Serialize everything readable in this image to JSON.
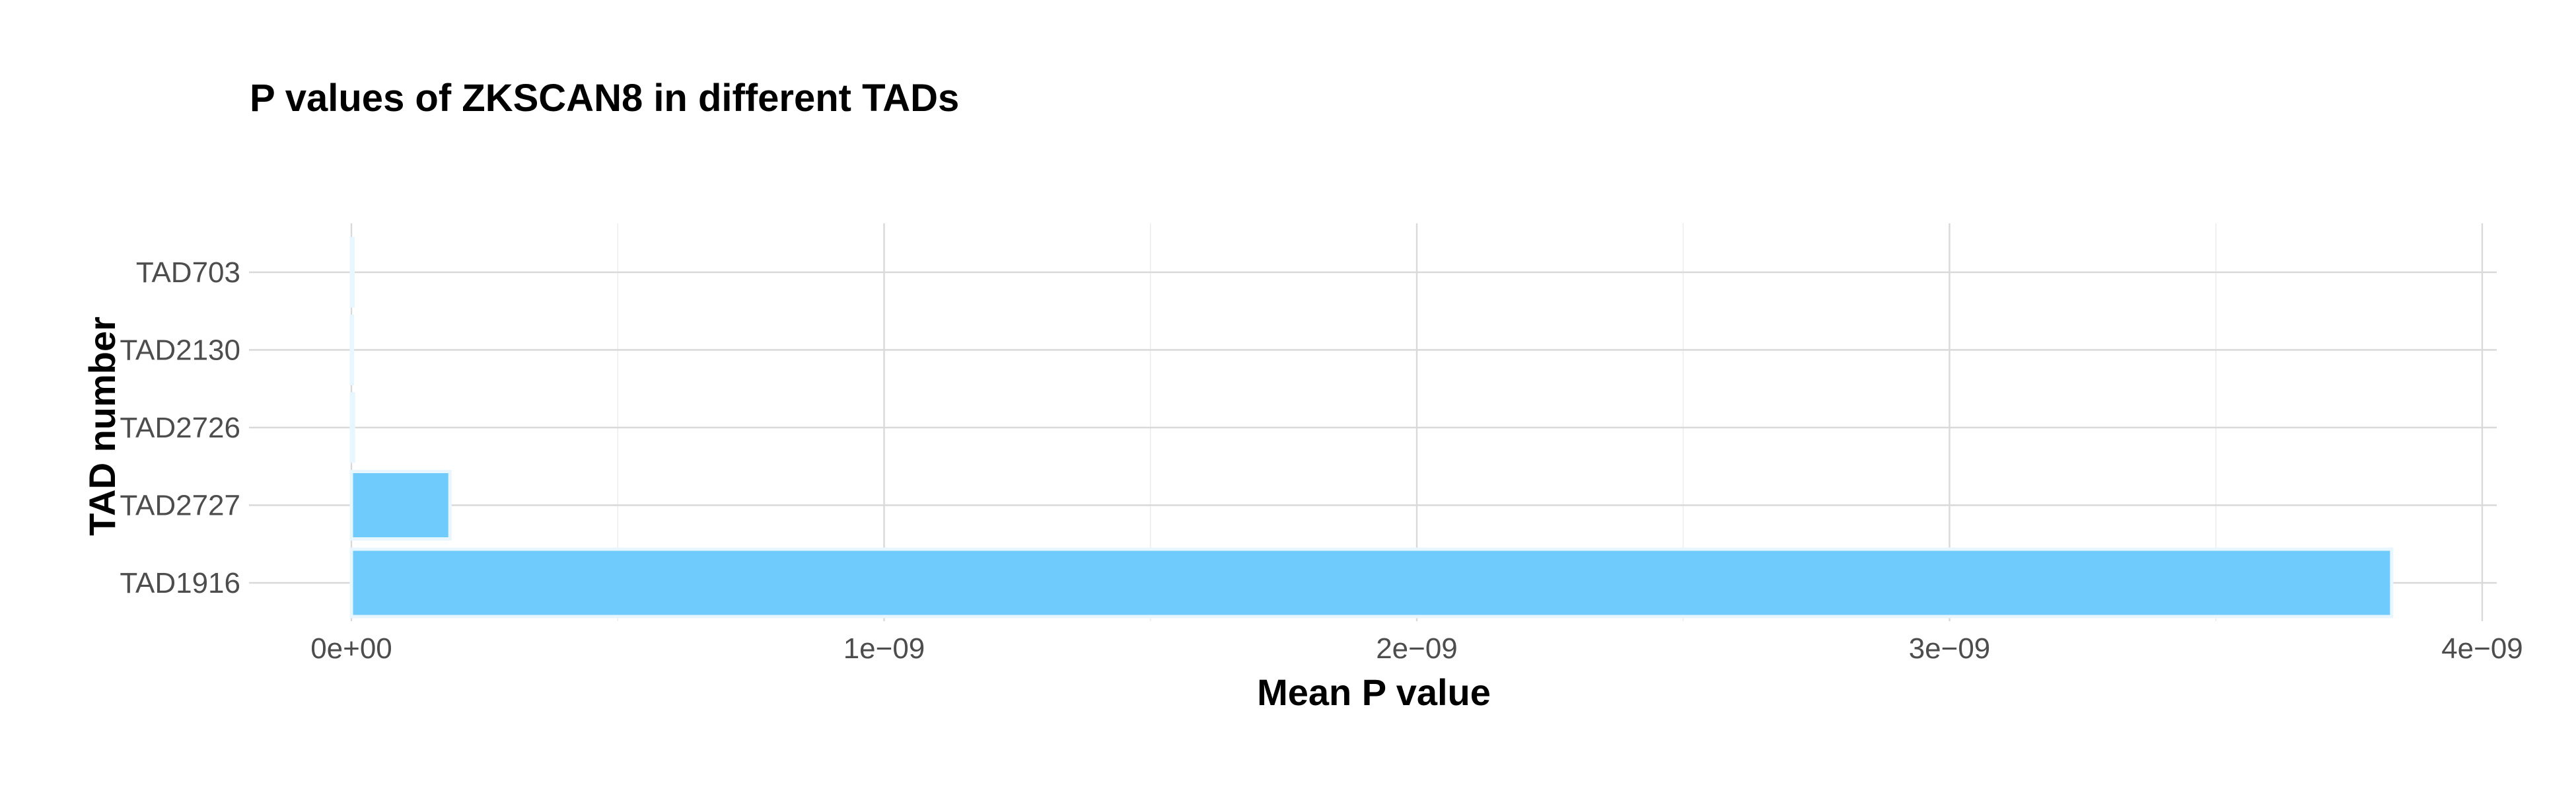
{
  "chart_data": {
    "type": "bar",
    "orientation": "horizontal",
    "title": "P values of ZKSCAN8 in different TADs",
    "xlabel": "Mean P value",
    "ylabel": "TAD number",
    "categories": [
      "TAD703",
      "TAD2130",
      "TAD2726",
      "TAD2727",
      "TAD1916"
    ],
    "values": [
      3e-12,
      2e-12,
      4e-12,
      1.85e-10,
      3.83e-09
    ],
    "xlim": [
      0,
      4e-09
    ],
    "xticks": [
      0,
      1e-09,
      2e-09,
      3e-09,
      4e-09
    ],
    "xtick_labels": [
      "0e+00",
      "1e−09",
      "2e−09",
      "3e−09",
      "4e−09"
    ],
    "grid": true,
    "legend": "none",
    "bar_color": "#6ecbfc",
    "bar_outline": "#e8f6ff"
  }
}
